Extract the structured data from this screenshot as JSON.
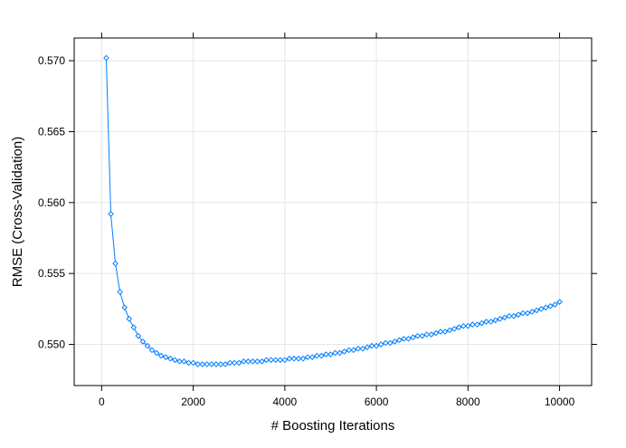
{
  "chart_data": {
    "type": "line",
    "title": "",
    "xlabel": "# Boosting Iterations",
    "ylabel": "RMSE (Cross-Validation)",
    "xlim": [
      -600,
      10700
    ],
    "ylim": [
      0.5471,
      0.5716
    ],
    "x_ticks": [
      0,
      2000,
      4000,
      6000,
      8000,
      10000
    ],
    "x_tick_labels": [
      "0",
      "2000",
      "4000",
      "6000",
      "8000",
      "10000"
    ],
    "y_ticks": [
      0.55,
      0.555,
      0.56,
      0.565,
      0.57
    ],
    "y_tick_labels": [
      "0.550",
      "0.555",
      "0.560",
      "0.565",
      "0.570"
    ],
    "grid": true,
    "marker": "diamond",
    "series": [
      {
        "color": "#0080ff",
        "x": [
          100,
          200,
          300,
          400,
          500,
          600,
          700,
          800,
          900,
          1000,
          1100,
          1200,
          1300,
          1400,
          1500,
          1600,
          1700,
          1800,
          1900,
          2000,
          2100,
          2200,
          2300,
          2400,
          2500,
          2600,
          2700,
          2800,
          2900,
          3000,
          3100,
          3200,
          3300,
          3400,
          3500,
          3600,
          3700,
          3800,
          3900,
          4000,
          4100,
          4200,
          4300,
          4400,
          4500,
          4600,
          4700,
          4800,
          4900,
          5000,
          5100,
          5200,
          5300,
          5400,
          5500,
          5600,
          5700,
          5800,
          5900,
          6000,
          6100,
          6200,
          6300,
          6400,
          6500,
          6600,
          6700,
          6800,
          6900,
          7000,
          7100,
          7200,
          7300,
          7400,
          7500,
          7600,
          7700,
          7800,
          7900,
          8000,
          8100,
          8200,
          8300,
          8400,
          8500,
          8600,
          8700,
          8800,
          8900,
          9000,
          9100,
          9200,
          9300,
          9400,
          9500,
          9600,
          9700,
          9800,
          9900,
          10000
        ],
        "y": [
          0.5702,
          0.5592,
          0.5557,
          0.5537,
          0.5526,
          0.5518,
          0.5512,
          0.5506,
          0.5502,
          0.5499,
          0.5496,
          0.5494,
          0.5492,
          0.5491,
          0.549,
          0.5489,
          0.5488,
          0.5488,
          0.5487,
          0.5487,
          0.5486,
          0.5486,
          0.5486,
          0.5486,
          0.5486,
          0.5486,
          0.5486,
          0.5487,
          0.5487,
          0.5487,
          0.5488,
          0.5488,
          0.5488,
          0.5488,
          0.5488,
          0.5489,
          0.5489,
          0.5489,
          0.5489,
          0.5489,
          0.549,
          0.549,
          0.549,
          0.549,
          0.5491,
          0.5491,
          0.5492,
          0.5492,
          0.5493,
          0.5493,
          0.5494,
          0.5494,
          0.5495,
          0.5496,
          0.5496,
          0.5497,
          0.5497,
          0.5498,
          0.5499,
          0.5499,
          0.55,
          0.5501,
          0.5501,
          0.5502,
          0.5503,
          0.5504,
          0.5504,
          0.5505,
          0.5506,
          0.5506,
          0.5507,
          0.5507,
          0.5508,
          0.5509,
          0.5509,
          0.551,
          0.5511,
          0.5512,
          0.5513,
          0.5513,
          0.5514,
          0.5514,
          0.5515,
          0.5516,
          0.5516,
          0.5517,
          0.5518,
          0.5519,
          0.552,
          0.552,
          0.5521,
          0.5522,
          0.5522,
          0.5523,
          0.5524,
          0.5525,
          0.5526,
          0.5527,
          0.5528,
          0.553
        ]
      }
    ]
  }
}
